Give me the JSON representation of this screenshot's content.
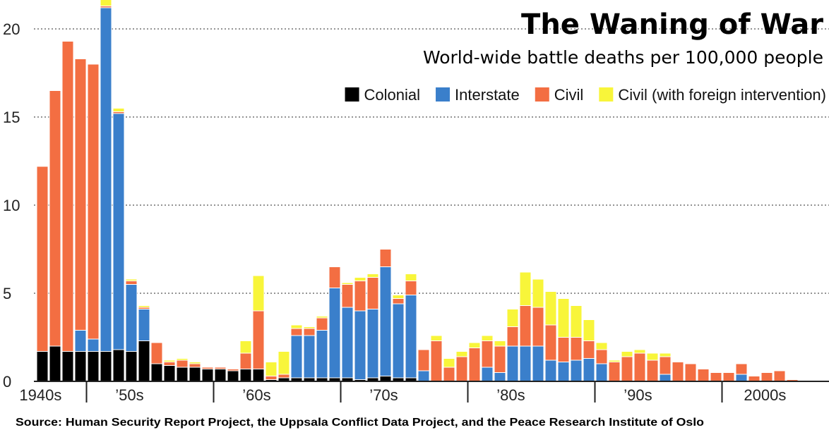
{
  "chart_data": {
    "type": "bar",
    "stacked": true,
    "title": "The Waning of War",
    "subtitle": "World-wide battle deaths per 100,000 people",
    "source": "Source: Human Security Report Project, the Uppsala Conflict Data Project, and the Peace Research Institute of Oslo",
    "x": [
      1946,
      1947,
      1948,
      1949,
      1950,
      1951,
      1952,
      1953,
      1954,
      1955,
      1956,
      1957,
      1958,
      1959,
      1960,
      1961,
      1962,
      1963,
      1964,
      1965,
      1966,
      1967,
      1968,
      1969,
      1970,
      1971,
      1972,
      1973,
      1974,
      1975,
      1976,
      1977,
      1978,
      1979,
      1980,
      1981,
      1982,
      1983,
      1984,
      1985,
      1986,
      1987,
      1988,
      1989,
      1990,
      1991,
      1992,
      1993,
      1994,
      1995,
      1996,
      1997,
      1998,
      1999,
      2000,
      2001,
      2002,
      2003,
      2004,
      2005,
      2006,
      2007,
      2008
    ],
    "series": [
      {
        "name": "Colonial",
        "color": "#000000",
        "values": [
          1.7,
          2.0,
          1.7,
          1.7,
          1.7,
          1.7,
          1.8,
          1.7,
          2.3,
          1.0,
          0.9,
          0.8,
          0.8,
          0.7,
          0.7,
          0.6,
          0.7,
          0.7,
          0.1,
          0.2,
          0.2,
          0.2,
          0.2,
          0.2,
          0.2,
          0.1,
          0.2,
          0.3,
          0.2,
          0.2,
          0,
          0,
          0,
          0,
          0,
          0,
          0,
          0,
          0,
          0,
          0,
          0,
          0,
          0,
          0,
          0,
          0,
          0,
          0,
          0,
          0,
          0,
          0,
          0,
          0,
          0,
          0,
          0,
          0,
          0,
          0,
          0,
          0
        ]
      },
      {
        "name": "Interstate",
        "color": "#3a7fcb",
        "values": [
          0,
          0,
          0,
          1.2,
          0.7,
          19.5,
          13.4,
          3.8,
          1.8,
          0,
          0,
          0,
          0,
          0,
          0,
          0,
          0,
          0,
          0,
          0,
          2.4,
          2.4,
          2.7,
          5.1,
          4.0,
          3.9,
          3.9,
          6.2,
          4.2,
          4.7,
          0.6,
          0,
          0,
          0,
          0,
          0.8,
          0.5,
          2.0,
          2.0,
          2.0,
          1.2,
          1.1,
          1.2,
          1.3,
          1.0,
          0,
          0,
          0,
          0,
          0.4,
          0,
          0,
          0,
          0,
          0,
          0.4,
          0,
          0,
          0,
          0,
          0,
          0,
          0
        ]
      },
      {
        "name": "Civil",
        "color": "#f36e42",
        "values": [
          10.5,
          14.5,
          17.6,
          15.4,
          15.6,
          0.1,
          0.1,
          0.2,
          0.1,
          1.2,
          0.2,
          0.4,
          0.2,
          0.1,
          0.1,
          0.1,
          0.9,
          3.3,
          0.2,
          0.2,
          0.4,
          0.4,
          0.7,
          1.2,
          1.3,
          1.7,
          1.8,
          1.0,
          0.3,
          0.8,
          1.2,
          2.3,
          0.8,
          1.4,
          1.9,
          1.5,
          1.5,
          1.1,
          2.3,
          2.2,
          2.0,
          1.4,
          1.3,
          1.0,
          0.8,
          1.1,
          1.4,
          1.6,
          1.2,
          1.0,
          1.1,
          1.0,
          0.7,
          0.5,
          0.5,
          0.6,
          0.3,
          0.5,
          0.6,
          0.1,
          0.05,
          0,
          0
        ]
      },
      {
        "name": "Civil (with foreign intervention)",
        "color": "#f8f53a",
        "values": [
          0,
          0,
          0,
          0,
          0,
          0.9,
          0.2,
          0.1,
          0.1,
          0,
          0.1,
          0.1,
          0.1,
          0,
          0,
          0,
          0.7,
          2.0,
          0.8,
          1.3,
          0.2,
          0.1,
          0.1,
          0,
          0.1,
          0.2,
          0.2,
          0,
          0.2,
          0.4,
          0,
          0.3,
          0.5,
          0.3,
          0.3,
          0.3,
          0.3,
          1.0,
          1.9,
          1.6,
          1.9,
          2.2,
          1.8,
          1.2,
          0.4,
          0.1,
          0.3,
          0.2,
          0.4,
          0.2,
          0,
          0,
          0,
          0,
          0,
          0,
          0,
          0,
          0,
          0,
          0,
          0,
          0
        ]
      }
    ],
    "legend": [
      "Colonial",
      "Interstate",
      "Civil",
      "Civil (with foreign intervention)"
    ],
    "legend_position": "top-right",
    "ylim": [
      0,
      22
    ],
    "yticks": [
      0,
      5,
      10,
      15,
      20
    ],
    "xtick_labels": [
      {
        "label": "1940s",
        "year": 1946.3
      },
      {
        "label": "’50s",
        "year": 1953.3
      },
      {
        "label": "’60s",
        "year": 1963.3
      },
      {
        "label": "’70s",
        "year": 1973.3
      },
      {
        "label": "’80s",
        "year": 1983.3
      },
      {
        "label": "’90s",
        "year": 1993.3
      },
      {
        "label": "2000s",
        "year": 2003.3
      }
    ],
    "decade_dividers": [
      1950,
      1960,
      1970,
      1980,
      1990,
      2000
    ],
    "grid": "dotted horizontal"
  }
}
